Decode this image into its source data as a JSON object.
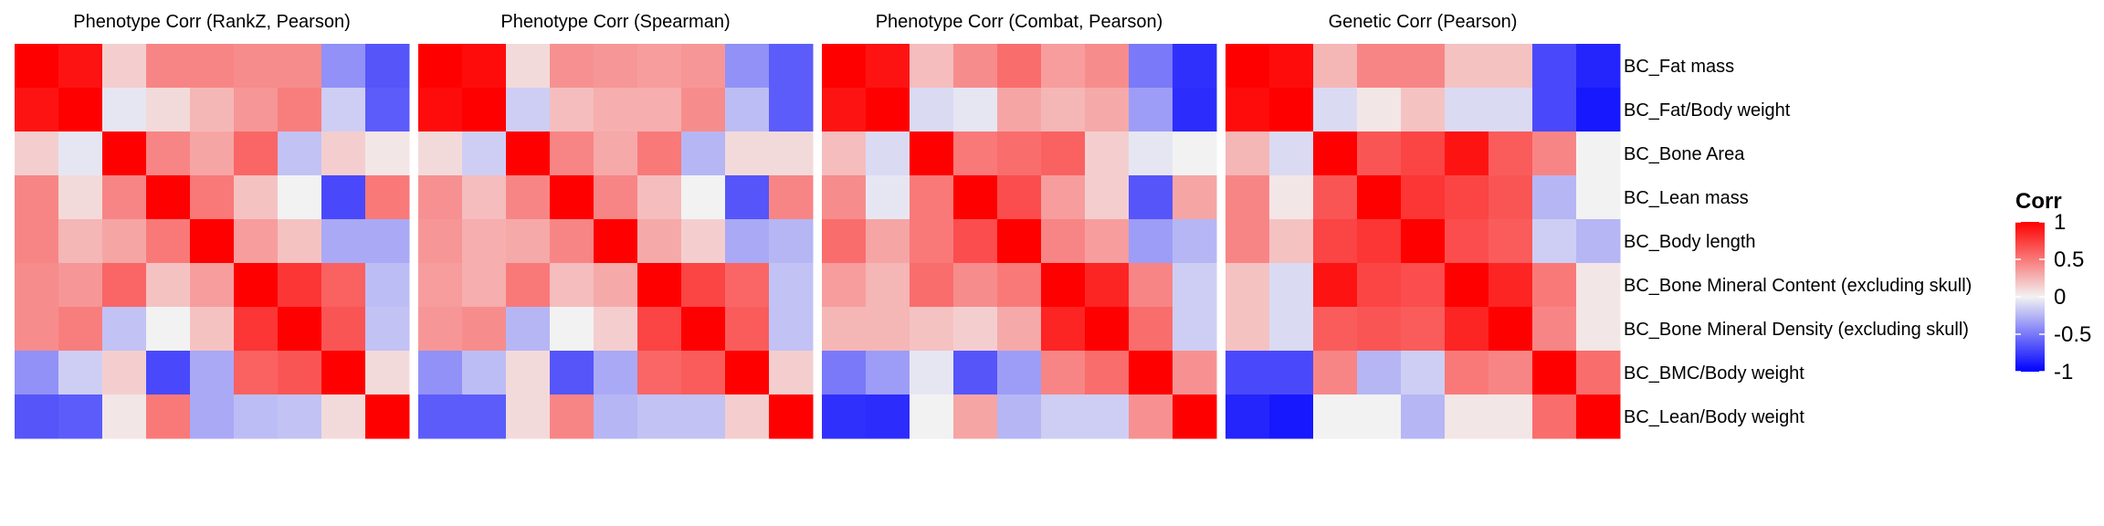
{
  "chart_data": {
    "type": "heatmap",
    "rows": [
      "BC_Fat mass",
      "BC_Fat/Body weight",
      "BC_Bone Area",
      "BC_Lean mass",
      "BC_Body length",
      "BC_Bone Mineral Content (excluding skull)",
      "BC_Bone Mineral Density (excluding skull)",
      "BC_BMC/Body weight",
      "BC_Lean/Body weight"
    ],
    "legend": {
      "title": "Corr",
      "range": [
        -1,
        1
      ],
      "ticks": [
        {
          "value": 1,
          "label": "1"
        },
        {
          "value": 0.5,
          "label": "0.5"
        },
        {
          "value": 0,
          "label": "0"
        },
        {
          "value": -0.5,
          "label": "-0.5"
        },
        {
          "value": -1,
          "label": "-1"
        }
      ],
      "colors": {
        "low": "#0000FF",
        "mid": "#F2F2F2",
        "high": "#FF0000"
      }
    },
    "panels": [
      {
        "title": "Phenotype Corr (RankZ, Pearson)",
        "values": [
          [
            1.0,
            0.92,
            0.15,
            0.45,
            0.45,
            0.42,
            0.42,
            -0.4,
            -0.65
          ],
          [
            0.92,
            1.0,
            -0.05,
            0.1,
            0.25,
            0.38,
            0.48,
            -0.15,
            -0.62
          ],
          [
            0.15,
            -0.05,
            1.0,
            0.45,
            0.32,
            0.58,
            -0.2,
            0.15,
            0.05
          ],
          [
            0.45,
            0.1,
            0.45,
            1.0,
            0.5,
            0.2,
            0.0,
            -0.7,
            0.5
          ],
          [
            0.45,
            0.25,
            0.32,
            0.5,
            1.0,
            0.35,
            0.2,
            -0.3,
            -0.3
          ],
          [
            0.42,
            0.38,
            0.58,
            0.2,
            0.35,
            1.0,
            0.78,
            0.6,
            -0.22
          ],
          [
            0.42,
            0.48,
            -0.2,
            0.0,
            0.2,
            0.78,
            1.0,
            0.65,
            -0.2
          ],
          [
            -0.4,
            -0.15,
            0.15,
            -0.7,
            -0.3,
            0.6,
            0.65,
            1.0,
            0.1
          ],
          [
            -0.65,
            -0.62,
            0.05,
            0.5,
            -0.3,
            -0.22,
            -0.2,
            0.1,
            1.0
          ]
        ]
      },
      {
        "title": "Phenotype Corr (Spearman)",
        "values": [
          [
            1.0,
            0.95,
            0.1,
            0.4,
            0.38,
            0.35,
            0.38,
            -0.4,
            -0.62
          ],
          [
            0.95,
            1.0,
            -0.15,
            0.22,
            0.28,
            0.28,
            0.42,
            -0.22,
            -0.62
          ],
          [
            0.1,
            -0.15,
            1.0,
            0.45,
            0.3,
            0.5,
            -0.25,
            0.1,
            0.1
          ],
          [
            0.4,
            0.22,
            0.45,
            1.0,
            0.45,
            0.22,
            0.0,
            -0.65,
            0.45
          ],
          [
            0.38,
            0.28,
            0.3,
            0.45,
            1.0,
            0.3,
            0.15,
            -0.3,
            -0.25
          ],
          [
            0.35,
            0.28,
            0.5,
            0.22,
            0.3,
            1.0,
            0.72,
            0.58,
            -0.2
          ],
          [
            0.38,
            0.42,
            -0.25,
            0.0,
            0.15,
            0.72,
            1.0,
            0.62,
            -0.2
          ],
          [
            -0.4,
            -0.22,
            0.1,
            -0.65,
            -0.3,
            0.58,
            0.62,
            1.0,
            0.15
          ],
          [
            -0.62,
            -0.62,
            0.1,
            0.45,
            -0.25,
            -0.2,
            -0.2,
            0.15,
            1.0
          ]
        ]
      },
      {
        "title": "Phenotype Corr (Combat, Pearson)",
        "values": [
          [
            1.0,
            0.92,
            0.22,
            0.42,
            0.55,
            0.35,
            0.42,
            -0.5,
            -0.8
          ],
          [
            0.92,
            1.0,
            -0.1,
            -0.05,
            0.32,
            0.25,
            0.3,
            -0.35,
            -0.82
          ],
          [
            0.22,
            -0.1,
            1.0,
            0.5,
            0.55,
            0.6,
            0.15,
            -0.05,
            0.0
          ],
          [
            0.42,
            -0.05,
            0.5,
            1.0,
            0.68,
            0.35,
            0.15,
            -0.65,
            0.32
          ],
          [
            0.55,
            0.32,
            0.5,
            0.68,
            1.0,
            0.45,
            0.35,
            -0.35,
            -0.25
          ],
          [
            0.35,
            0.25,
            0.55,
            0.42,
            0.5,
            1.0,
            0.85,
            0.45,
            -0.15
          ],
          [
            0.25,
            0.25,
            0.2,
            0.15,
            0.3,
            0.85,
            1.0,
            0.55,
            -0.15
          ],
          [
            -0.5,
            -0.35,
            -0.05,
            -0.65,
            -0.35,
            0.45,
            0.55,
            1.0,
            0.4
          ],
          [
            -0.8,
            -0.82,
            0.0,
            0.32,
            -0.25,
            -0.15,
            -0.15,
            0.4,
            1.0
          ]
        ]
      },
      {
        "title": "Genetic Corr  (Pearson)",
        "values": [
          [
            1.0,
            0.95,
            0.25,
            0.45,
            0.45,
            0.2,
            0.2,
            -0.7,
            -0.85
          ],
          [
            0.95,
            1.0,
            -0.1,
            0.05,
            0.2,
            -0.1,
            -0.1,
            -0.7,
            -0.9
          ],
          [
            0.25,
            -0.1,
            1.0,
            0.65,
            0.72,
            0.92,
            0.62,
            0.45,
            0.0
          ],
          [
            0.45,
            0.05,
            0.65,
            1.0,
            0.78,
            0.72,
            0.65,
            -0.25,
            0.0
          ],
          [
            0.45,
            0.2,
            0.72,
            0.78,
            1.0,
            0.68,
            0.62,
            -0.15,
            -0.25
          ],
          [
            0.2,
            -0.1,
            0.92,
            0.72,
            0.68,
            1.0,
            0.85,
            0.5,
            0.05
          ],
          [
            0.2,
            -0.1,
            0.62,
            0.65,
            0.62,
            0.85,
            1.0,
            0.45,
            0.05
          ],
          [
            -0.7,
            -0.7,
            0.45,
            -0.25,
            -0.15,
            0.5,
            0.45,
            1.0,
            0.55
          ],
          [
            -0.85,
            -0.9,
            0.0,
            0.0,
            -0.25,
            0.05,
            0.05,
            0.55,
            1.0
          ]
        ]
      }
    ]
  }
}
